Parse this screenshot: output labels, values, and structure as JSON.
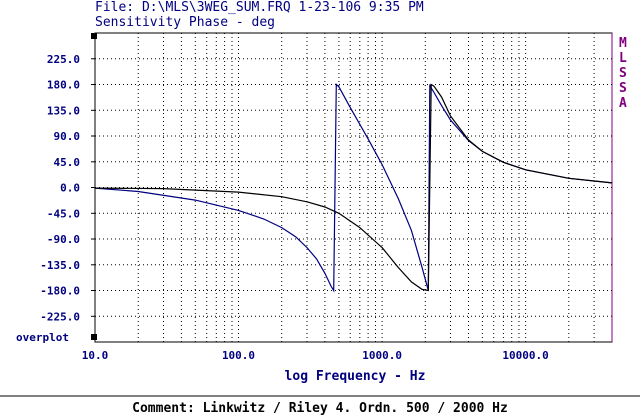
{
  "header": {
    "file_line": "File: D:\\MLS\\3WEG_SUM.FRQ 1-23-106 9:35 PM",
    "title": "Sensitivity Phase - deg"
  },
  "side_label": [
    "M",
    "L",
    "S",
    "S",
    "A"
  ],
  "overplot_label": "overplot",
  "comment": "Comment: Linkwitz / Riley 4. Ordn. 500 / 2000 Hz",
  "colors": {
    "text": "#000080",
    "curve_a": "#000080",
    "curve_b": "#000000",
    "grid": "#000000",
    "brand": "#800080"
  },
  "chart_data": {
    "type": "line",
    "title": "Sensitivity Phase - deg",
    "xlabel": "log Frequency - Hz",
    "ylabel": "",
    "xscale": "log",
    "xlim": [
      10,
      40000
    ],
    "ylim": [
      -270,
      270
    ],
    "x_ticks": [
      10,
      100,
      1000,
      10000
    ],
    "x_tick_labels": [
      "10.0",
      "100.0",
      "1000.0",
      "10000.0"
    ],
    "y_ticks": [
      225,
      180,
      135,
      90,
      45,
      0,
      -45,
      -90,
      -135,
      -180,
      -225
    ],
    "y_tick_labels": [
      "225.0",
      "180.0",
      "135.0",
      "90.0",
      "45.0",
      "0.0",
      "-45.0",
      "-90.0",
      "-135.0",
      "-180.0",
      "-225.0"
    ],
    "grid": true,
    "series": [
      {
        "x": [
          10,
          20,
          50,
          100,
          150,
          200,
          250,
          300,
          350,
          400,
          440,
          460,
          480,
          500,
          600,
          800,
          1000,
          1300,
          1600,
          1900,
          2100,
          2150,
          2200,
          2300,
          2600,
          3000,
          4000,
          5000,
          7000,
          10000,
          20000,
          40000
        ],
        "y": [
          -1,
          -7,
          -22,
          -40,
          -55,
          -70,
          -86,
          -105,
          -125,
          -150,
          -172,
          -180,
          180,
          176,
          140,
          85,
          40,
          -20,
          -75,
          -140,
          -180,
          180,
          174,
          166,
          143,
          118,
          82,
          63,
          44,
          31,
          16,
          8
        ]
      },
      {
        "x": [
          10,
          30,
          100,
          200,
          300,
          400,
          500,
          700,
          1000,
          1300,
          1600,
          1900,
          2100,
          2200,
          2300,
          2600,
          3000,
          4000,
          5000,
          7000,
          10000,
          20000,
          40000
        ],
        "y": [
          -1,
          -2,
          -8,
          -16,
          -25,
          -34,
          -45,
          -70,
          -105,
          -140,
          -165,
          -178,
          -180,
          180,
          177,
          158,
          125,
          83,
          63,
          44,
          31,
          16,
          8
        ]
      }
    ]
  }
}
